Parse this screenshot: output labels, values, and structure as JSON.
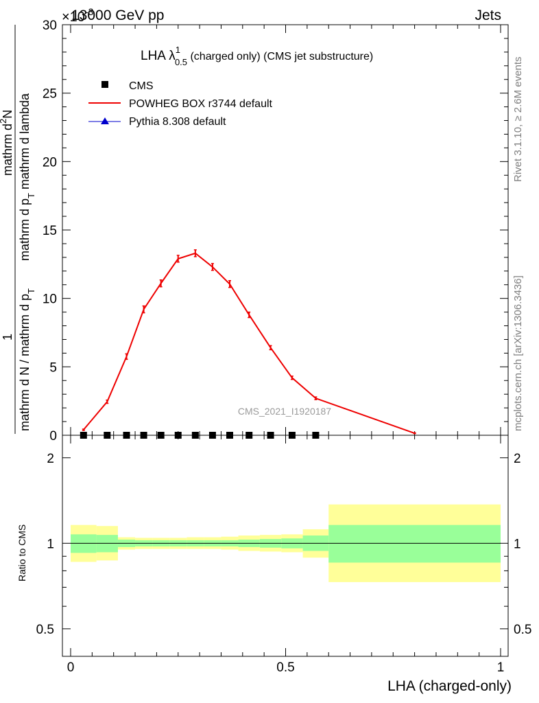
{
  "header": {
    "left": "13000 GeV pp",
    "right": "Jets",
    "exponent_label": "×10",
    "exponent": "-3"
  },
  "side_labels": {
    "rivet": "Rivet 3.1.10, ≥ 2.6M events",
    "mcplots": "mcplots.cern.ch [arXiv:1306.3436]"
  },
  "watermark": "CMS_2021_I1920187",
  "chart_data": [
    {
      "type": "line",
      "title": {
        "main": "LHA λ",
        "sup": "1",
        "sub": "0.5",
        "rest": " (charged only) (CMS jet substructure)"
      },
      "ylabel": {
        "prefix_num": "1",
        "prefix_den": "mathrm d N / mathrm d p",
        "prefix_den_sub": "T",
        "num": "mathrm d",
        "num_sup": "2",
        "num_tail": "N",
        "den": "mathrm d p",
        "den_sub": "T",
        "den_tail": " mathrm d lambda"
      },
      "xlim": [
        0,
        1
      ],
      "ylim": [
        0,
        30
      ],
      "y_scale_note": "×10^-3",
      "yticks": [
        0,
        5,
        10,
        15,
        20,
        25,
        30
      ],
      "yticklabels": [
        "0",
        "5",
        "10",
        "15",
        "20",
        "25",
        "30"
      ],
      "legend": {
        "position": "top-left",
        "entries": [
          "CMS",
          "POWHEG BOX r3744 default",
          "Pythia 8.308 default"
        ]
      },
      "series": [
        {
          "name": "CMS",
          "color": "#000000",
          "marker": "square",
          "x": [
            0.03,
            0.085,
            0.13,
            0.17,
            0.21,
            0.25,
            0.29,
            0.33,
            0.37,
            0.415,
            0.465,
            0.515,
            0.57
          ],
          "y": [
            0,
            0,
            0,
            0,
            0,
            0,
            0,
            0,
            0,
            0,
            0,
            0,
            0
          ]
        },
        {
          "name": "POWHEG BOX r3744 default",
          "color": "#ee0000",
          "marker": "line",
          "x": [
            0.03,
            0.085,
            0.13,
            0.17,
            0.21,
            0.25,
            0.29,
            0.33,
            0.37,
            0.415,
            0.465,
            0.515,
            0.57,
            0.8
          ],
          "y": [
            0.4,
            2.45,
            5.75,
            9.2,
            11.1,
            12.9,
            13.3,
            12.3,
            11.05,
            8.8,
            6.4,
            4.2,
            2.7,
            0.15
          ],
          "yerr": [
            0.05,
            0.12,
            0.2,
            0.25,
            0.25,
            0.25,
            0.25,
            0.25,
            0.25,
            0.2,
            0.15,
            0.12,
            0.1,
            0.03
          ]
        },
        {
          "name": "Pythia 8.308 default",
          "color": "#0000cc",
          "marker": "triangle",
          "x": [],
          "y": []
        }
      ]
    },
    {
      "type": "area",
      "ylabel": "Ratio to CMS",
      "xlabel": "LHA (charged-only)",
      "xlim": [
        0,
        1
      ],
      "ylim": [
        0.4,
        2.4
      ],
      "scale": "log",
      "yticks": [
        0.5,
        1,
        2
      ],
      "yticklabels": [
        "0.5",
        "1",
        "2"
      ],
      "xticks": [
        0,
        0.5,
        1
      ],
      "xticklabels": [
        "0",
        "0.5",
        "1"
      ],
      "reference": 1,
      "bands": [
        {
          "x0": 0.0,
          "x1": 0.06,
          "inner": [
            0.925,
            1.075
          ],
          "outer": [
            0.86,
            1.16
          ]
        },
        {
          "x0": 0.06,
          "x1": 0.11,
          "inner": [
            0.93,
            1.07
          ],
          "outer": [
            0.87,
            1.15
          ]
        },
        {
          "x0": 0.11,
          "x1": 0.15,
          "inner": [
            0.97,
            1.03
          ],
          "outer": [
            0.95,
            1.05
          ]
        },
        {
          "x0": 0.15,
          "x1": 0.19,
          "inner": [
            0.975,
            1.025
          ],
          "outer": [
            0.955,
            1.045
          ]
        },
        {
          "x0": 0.19,
          "x1": 0.23,
          "inner": [
            0.975,
            1.025
          ],
          "outer": [
            0.955,
            1.045
          ]
        },
        {
          "x0": 0.23,
          "x1": 0.27,
          "inner": [
            0.975,
            1.025
          ],
          "outer": [
            0.955,
            1.045
          ]
        },
        {
          "x0": 0.27,
          "x1": 0.31,
          "inner": [
            0.975,
            1.025
          ],
          "outer": [
            0.955,
            1.05
          ]
        },
        {
          "x0": 0.31,
          "x1": 0.35,
          "inner": [
            0.975,
            1.025
          ],
          "outer": [
            0.955,
            1.05
          ]
        },
        {
          "x0": 0.35,
          "x1": 0.39,
          "inner": [
            0.975,
            1.025
          ],
          "outer": [
            0.95,
            1.055
          ]
        },
        {
          "x0": 0.39,
          "x1": 0.44,
          "inner": [
            0.97,
            1.03
          ],
          "outer": [
            0.94,
            1.065
          ]
        },
        {
          "x0": 0.44,
          "x1": 0.49,
          "inner": [
            0.965,
            1.035
          ],
          "outer": [
            0.935,
            1.07
          ]
        },
        {
          "x0": 0.49,
          "x1": 0.54,
          "inner": [
            0.96,
            1.04
          ],
          "outer": [
            0.93,
            1.075
          ]
        },
        {
          "x0": 0.54,
          "x1": 0.6,
          "inner": [
            0.94,
            1.065
          ],
          "outer": [
            0.89,
            1.12
          ]
        },
        {
          "x0": 0.6,
          "x1": 1.0,
          "inner": [
            0.855,
            1.16
          ],
          "outer": [
            0.73,
            1.37
          ]
        }
      ],
      "band_colors": {
        "inner": "#99ff99",
        "outer": "#ffff99"
      }
    }
  ]
}
